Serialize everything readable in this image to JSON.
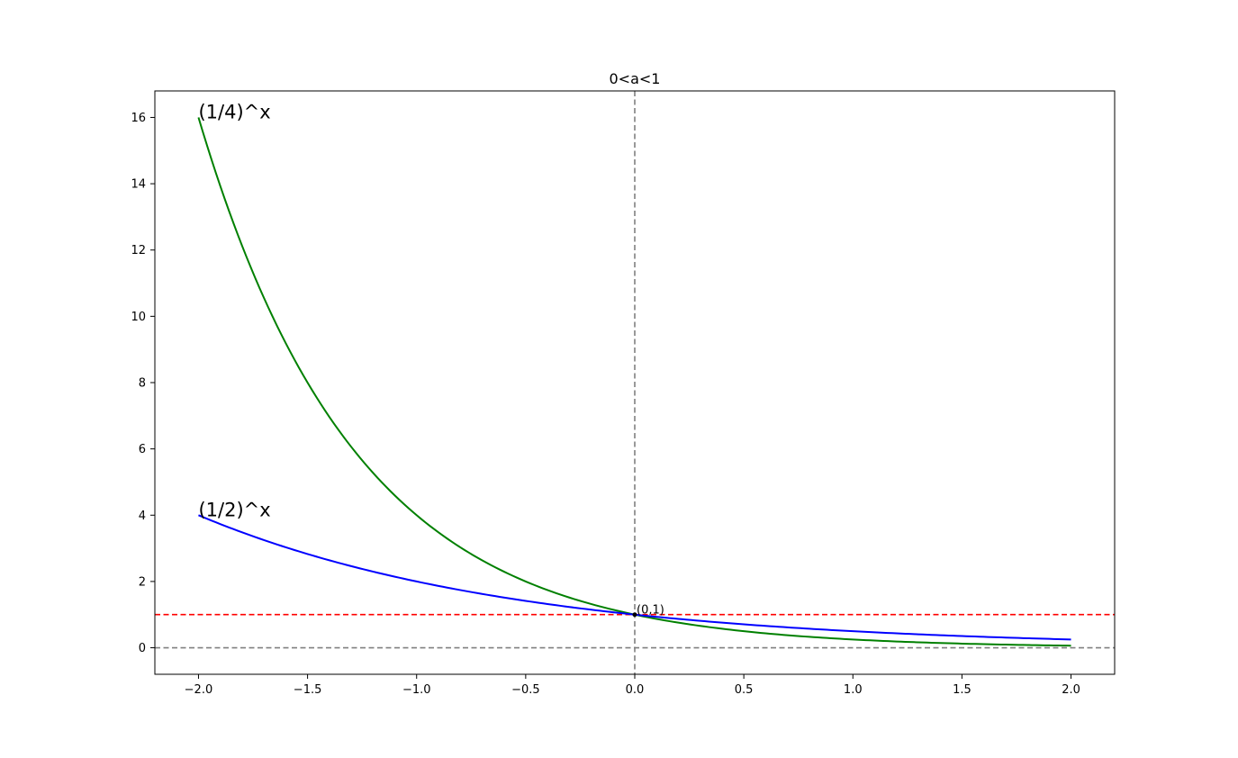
{
  "chart_data": {
    "type": "line",
    "title": "0<a<1",
    "xlabel": "",
    "ylabel": "",
    "xlim": [
      -2.2,
      2.2
    ],
    "ylim": [
      -0.8,
      16.8
    ],
    "xticks": [
      -2.0,
      -1.5,
      -1.0,
      -0.5,
      0.0,
      0.5,
      1.0,
      1.5,
      2.0
    ],
    "xtick_labels": [
      "−2.0",
      "−1.5",
      "−1.0",
      "−0.5",
      "0.0",
      "0.5",
      "1.0",
      "1.5",
      "2.0"
    ],
    "yticks": [
      0,
      2,
      4,
      6,
      8,
      10,
      12,
      14,
      16
    ],
    "ytick_labels": [
      "0",
      "2",
      "4",
      "6",
      "8",
      "10",
      "12",
      "14",
      "16"
    ],
    "grid": false,
    "series": [
      {
        "name": "(1/4)^x",
        "color": "#008000",
        "base": 0.25,
        "x": [
          -2.0,
          -1.75,
          -1.5,
          -1.25,
          -1.0,
          -0.75,
          -0.5,
          -0.25,
          0.0,
          0.25,
          0.5,
          0.75,
          1.0,
          1.25,
          1.5,
          1.75,
          2.0
        ],
        "y": [
          16.0,
          11.31,
          8.0,
          5.66,
          4.0,
          2.83,
          2.0,
          1.41,
          1.0,
          0.71,
          0.5,
          0.35,
          0.25,
          0.18,
          0.125,
          0.088,
          0.0625
        ]
      },
      {
        "name": "(1/2)^x",
        "color": "#0000ff",
        "base": 0.5,
        "x": [
          -2.0,
          -1.75,
          -1.5,
          -1.25,
          -1.0,
          -0.75,
          -0.5,
          -0.25,
          0.0,
          0.25,
          0.5,
          0.75,
          1.0,
          1.25,
          1.5,
          1.75,
          2.0
        ],
        "y": [
          4.0,
          3.36,
          2.83,
          2.38,
          2.0,
          1.68,
          1.41,
          1.19,
          1.0,
          0.84,
          0.71,
          0.59,
          0.5,
          0.42,
          0.35,
          0.3,
          0.25
        ]
      }
    ],
    "reference_lines": [
      {
        "orientation": "horizontal",
        "value": 1,
        "color": "#ff0000",
        "style": "dashed"
      },
      {
        "orientation": "horizontal",
        "value": 0,
        "color": "#808080",
        "style": "dashed"
      },
      {
        "orientation": "vertical",
        "value": 0,
        "color": "#808080",
        "style": "dashed"
      }
    ],
    "annotations": [
      {
        "text": "(0,1)",
        "x": 0,
        "y": 1
      }
    ],
    "point": {
      "x": 0,
      "y": 1,
      "color": "#000000"
    }
  }
}
